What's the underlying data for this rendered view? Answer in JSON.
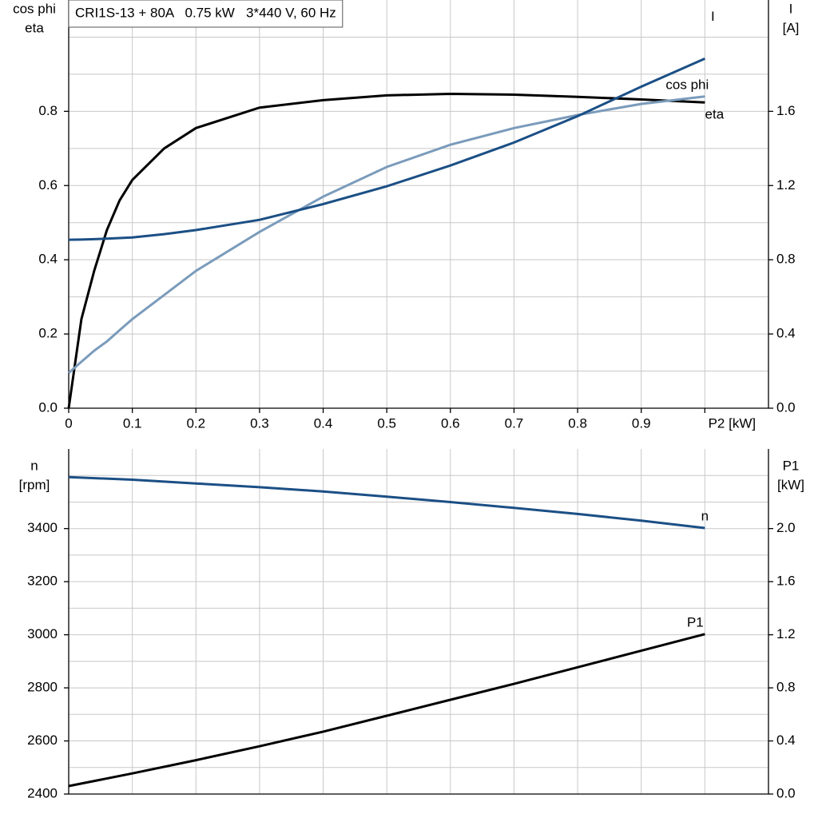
{
  "chart_data": [
    {
      "type": "line",
      "title": "CRI1S-13 + 80A   0.75 kW   3*440 V, 60 Hz",
      "ylabel": [
        "cos phi",
        "eta"
      ],
      "y2label": [
        "I",
        "[A]"
      ],
      "x": [
        0,
        0.02,
        0.04,
        0.06,
        0.08,
        0.1,
        0.15,
        0.2,
        0.3,
        0.4,
        0.5,
        0.6,
        0.7,
        0.8,
        0.9,
        1.0
      ],
      "xlim": [
        0,
        1.1
      ],
      "xticks": [
        0,
        0.1,
        0.2,
        0.3,
        0.4,
        0.5,
        0.6,
        0.7,
        0.8,
        0.9,
        {
          "value": 1.0,
          "label": "P2 [kW]"
        }
      ],
      "ylim": [
        0,
        1.1
      ],
      "yticks": [
        {
          "value": 0,
          "label": "0.0"
        },
        0.2,
        0.4,
        0.6,
        0.8
      ],
      "yticks_minor": [
        0.1,
        0.3,
        0.5,
        0.7,
        0.9,
        1.0
      ],
      "y2lim": [
        0,
        2.2
      ],
      "y2ticks": [
        {
          "value": 0,
          "label": "0.0"
        },
        0.4,
        0.8,
        1.2,
        1.6
      ],
      "grid": true,
      "series": [
        {
          "name": "eta",
          "color": "#000000",
          "values": [
            0,
            0.24,
            0.37,
            0.48,
            0.56,
            0.615,
            0.7,
            0.755,
            0.81,
            0.83,
            0.843,
            0.847,
            0.845,
            0.839,
            0.832,
            0.824
          ]
        },
        {
          "name": "cos phi",
          "color": "#7a9bbb",
          "values": [
            0.095,
            0.125,
            0.155,
            0.18,
            0.21,
            0.24,
            0.305,
            0.37,
            0.475,
            0.57,
            0.65,
            0.71,
            0.755,
            0.79,
            0.82,
            0.84
          ]
        },
        {
          "name": "I",
          "color": "#1b4f85",
          "axis": "y2",
          "values": [
            0.908,
            0.909,
            0.911,
            0.914,
            0.917,
            0.92,
            0.938,
            0.96,
            1.015,
            1.1,
            1.196,
            1.308,
            1.432,
            1.574,
            1.733,
            1.884
          ]
        }
      ]
    },
    {
      "type": "line",
      "ylabel": [
        "n",
        "[rpm]"
      ],
      "y2label": [
        "P1",
        "[kW]"
      ],
      "x": [
        0,
        0.1,
        0.2,
        0.3,
        0.4,
        0.5,
        0.6,
        0.7,
        0.8,
        0.9,
        1.0
      ],
      "xlim": [
        0,
        1.1
      ],
      "xticks": [
        0,
        0.1,
        0.2,
        0.3,
        0.4,
        0.5,
        0.6,
        0.7,
        0.8,
        0.9,
        1.0
      ],
      "ylim": [
        2400,
        3700
      ],
      "yticks": [
        2400,
        2600,
        2800,
        3000,
        3200,
        3400
      ],
      "yticks_minor": [
        2500,
        2700,
        2900,
        3100,
        3300,
        3500,
        3600
      ],
      "y2lim": [
        0,
        2.6
      ],
      "y2ticks": [
        {
          "value": 0,
          "label": "0.0"
        },
        0.4,
        0.8,
        1.2,
        1.6,
        {
          "value": 2,
          "label": "2.0"
        }
      ],
      "grid": true,
      "series": [
        {
          "name": "n",
          "color": "#1b4f85",
          "values": [
            3594,
            3584,
            3570,
            3556,
            3540,
            3520,
            3500,
            3478,
            3455,
            3430,
            3402
          ]
        },
        {
          "name": "P1",
          "color": "#000000",
          "axis": "y2",
          "values": [
            0.06,
            0.155,
            0.255,
            0.36,
            0.47,
            0.59,
            0.71,
            0.83,
            0.955,
            1.08,
            1.205
          ]
        }
      ]
    }
  ]
}
